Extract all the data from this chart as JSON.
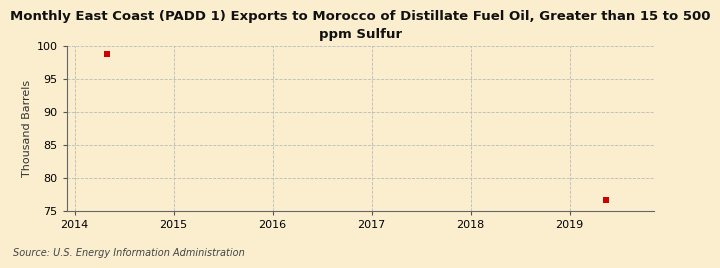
{
  "title": "Monthly East Coast (PADD 1) Exports to Morocco of Distillate Fuel Oil, Greater than 15 to 500\nppm Sulfur",
  "ylabel": "Thousand Barrels",
  "source": "Source: U.S. Energy Information Administration",
  "x_data": [
    2014.33,
    2019.37
  ],
  "y_data": [
    98.9,
    76.7
  ],
  "marker_color": "#cc0000",
  "marker_size": 4,
  "xlim": [
    2013.92,
    2019.85
  ],
  "ylim": [
    75,
    100
  ],
  "yticks": [
    75,
    80,
    85,
    90,
    95,
    100
  ],
  "xticks": [
    2014,
    2015,
    2016,
    2017,
    2018,
    2019
  ],
  "background_color": "#faeece",
  "plot_bg_color": "#faeece",
  "grid_color": "#bbbbbb",
  "title_fontsize": 9.5,
  "axis_fontsize": 8,
  "tick_fontsize": 8,
  "source_fontsize": 7
}
